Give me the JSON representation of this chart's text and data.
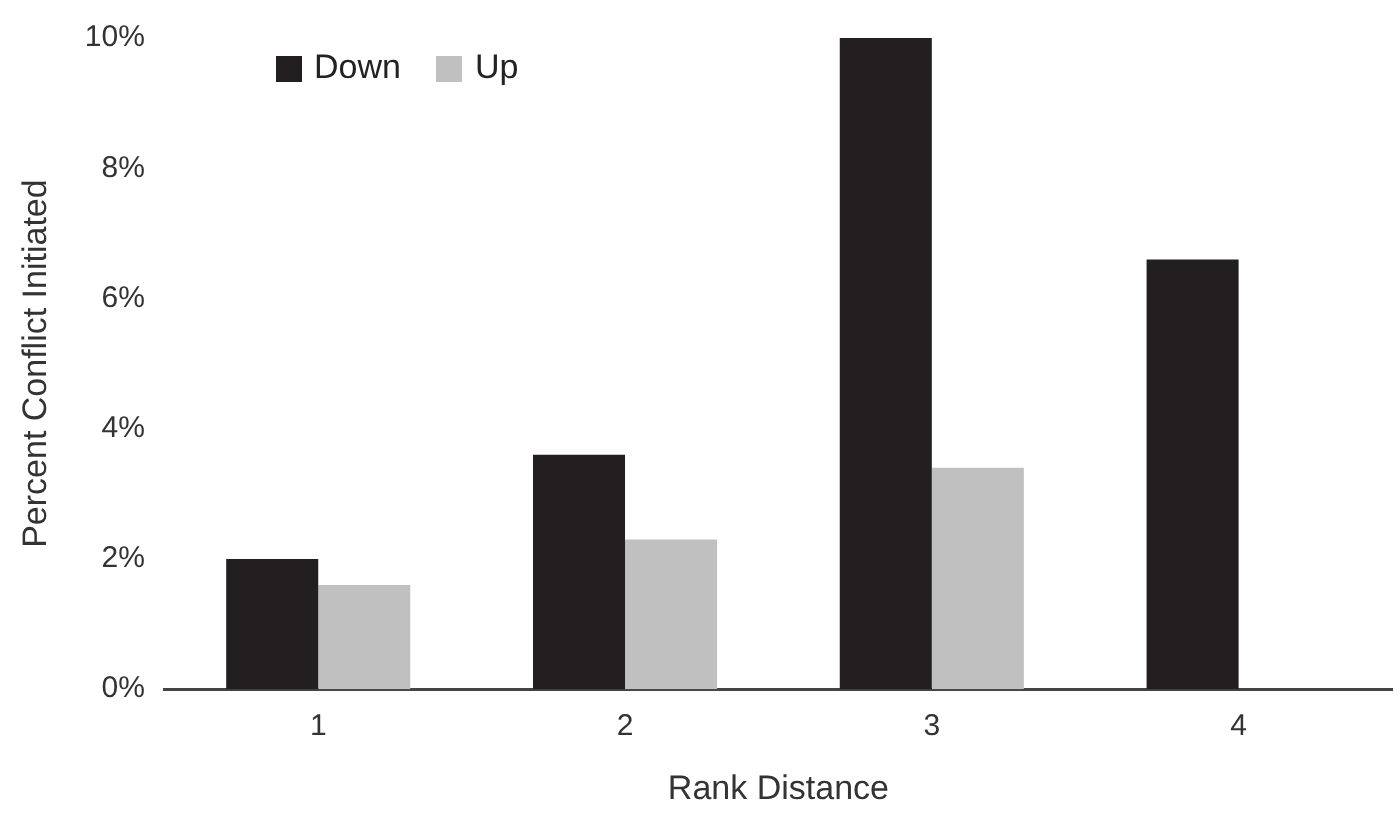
{
  "chart_data": {
    "type": "bar",
    "xlabel": "Rank Distance",
    "ylabel": "Percent Conflict Initiated",
    "categories": [
      "1",
      "2",
      "3",
      "4"
    ],
    "series": [
      {
        "name": "Down",
        "color": "#231f20",
        "values": [
          2.0,
          3.6,
          10.0,
          6.6
        ]
      },
      {
        "name": "Up",
        "color": "#c0c0c0",
        "values": [
          1.6,
          2.3,
          3.4,
          null
        ]
      }
    ],
    "ylim": [
      0,
      10
    ],
    "yticks": [
      {
        "value": 0,
        "label": "0%"
      },
      {
        "value": 2,
        "label": "2%"
      },
      {
        "value": 4,
        "label": "4%"
      },
      {
        "value": 6,
        "label": "6%"
      },
      {
        "value": 8,
        "label": "8%"
      },
      {
        "value": 10,
        "label": "10%"
      }
    ],
    "grid": false,
    "legend": "top left"
  }
}
